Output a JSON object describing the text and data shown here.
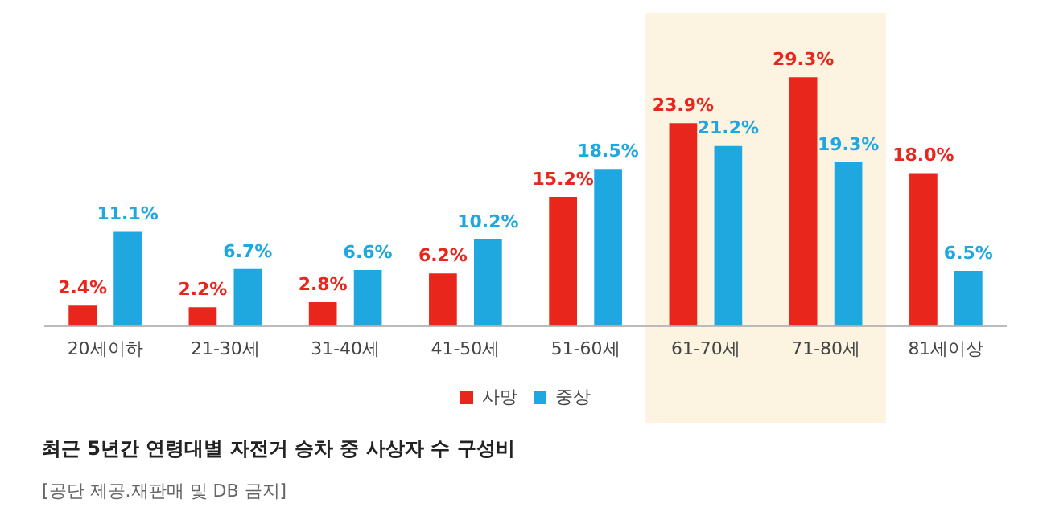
{
  "chart_data": {
    "type": "bar",
    "title": "최근 5년간 연령대별 자전거 승차 중 사상자 수 구성비",
    "annotations": [
      "[공단 제공.재판매 및 DB 금지]"
    ],
    "categories": [
      "20세이하",
      "21-30세",
      "31-40세",
      "41-50세",
      "51-60세",
      "61-70세",
      "71-80세",
      "81세이상"
    ],
    "series": [
      {
        "name": "사망",
        "color": "#e8261c",
        "values": [
          2.4,
          2.2,
          2.8,
          6.2,
          15.2,
          23.9,
          29.3,
          18.0
        ],
        "value_labels": [
          "2.4%",
          "2.2%",
          "2.8%",
          "6.2%",
          "15.2%",
          "23.9%",
          "29.3%",
          "18.0%"
        ]
      },
      {
        "name": "중상",
        "color": "#1fa8e0",
        "values": [
          11.1,
          6.7,
          6.6,
          10.2,
          18.5,
          21.2,
          19.3,
          6.5
        ],
        "value_labels": [
          "11.1%",
          "6.7%",
          "6.6%",
          "10.2%",
          "18.5%",
          "21.2%",
          "19.3%",
          "6.5%"
        ]
      }
    ],
    "bands": [
      {
        "axis": "x",
        "from": "61-70세",
        "to": "71-80세",
        "color": "#fdf3e1"
      }
    ],
    "legend": "bottom",
    "grid": false
  }
}
